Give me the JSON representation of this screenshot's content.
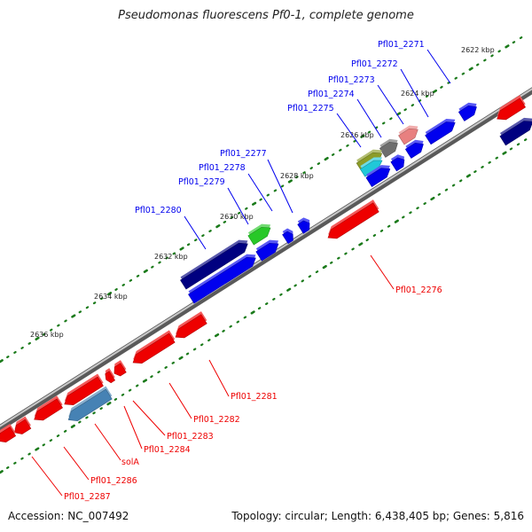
{
  "title": "Pseudomonas fluorescens Pf0-1, complete genome",
  "footer": {
    "accession": "Accession: NC_007492",
    "summary": "Topology: circular; Length: 6,438,405 bp; Genes: 5,816"
  },
  "colors": {
    "plus_label": "#0000ee",
    "minus_label": "#ee0000",
    "tick_dot": "#1a7a1a",
    "backbone": "#888888"
  },
  "kbp_labels": [
    "2622 kbp",
    "2624 kbp",
    "2626 kbp",
    "2628 kbp",
    "2630 kbp",
    "2632 kbp",
    "2634 kbp",
    "2636 kbp"
  ],
  "genes": [
    {
      "name": "Pfl01_2271",
      "strand": "+",
      "color": "#0000ee"
    },
    {
      "name": "Pfl01_2272",
      "strand": "+",
      "color": "#e88080"
    },
    {
      "name": "Pfl01_2273",
      "strand": "+",
      "color": "#6e6e6e"
    },
    {
      "name": "Pfl01_2274",
      "strand": "+",
      "color": "#8c9c28"
    },
    {
      "name": "Pfl01_2275",
      "strand": "+",
      "color": "#20c8d8"
    },
    {
      "name": "Pfl01_2276",
      "strand": "-",
      "color": "#ee0000"
    },
    {
      "name": "Pfl01_2277",
      "strand": "+",
      "color": "#0000ee"
    },
    {
      "name": "Pfl01_2278",
      "strand": "+",
      "color": "#0000ee"
    },
    {
      "name": "Pfl01_2279",
      "strand": "+",
      "color": "#28c828"
    },
    {
      "name": "Pfl01_2280",
      "strand": "+",
      "color": "#000080"
    },
    {
      "name": "Pfl01_2281",
      "strand": "-",
      "color": "#ee0000"
    },
    {
      "name": "Pfl01_2282",
      "strand": "-",
      "color": "#ee0000"
    },
    {
      "name": "Pfl01_2283",
      "strand": "-",
      "color": "#ee0000"
    },
    {
      "name": "Pfl01_2284",
      "strand": "-",
      "color": "#ee0000"
    },
    {
      "name": "solA",
      "strand": "-",
      "color": "#4682b4"
    },
    {
      "name": "Pfl01_2286",
      "strand": "-",
      "color": "#ee0000"
    },
    {
      "name": "Pfl01_2287",
      "strand": "-",
      "color": "#ee0000"
    }
  ]
}
